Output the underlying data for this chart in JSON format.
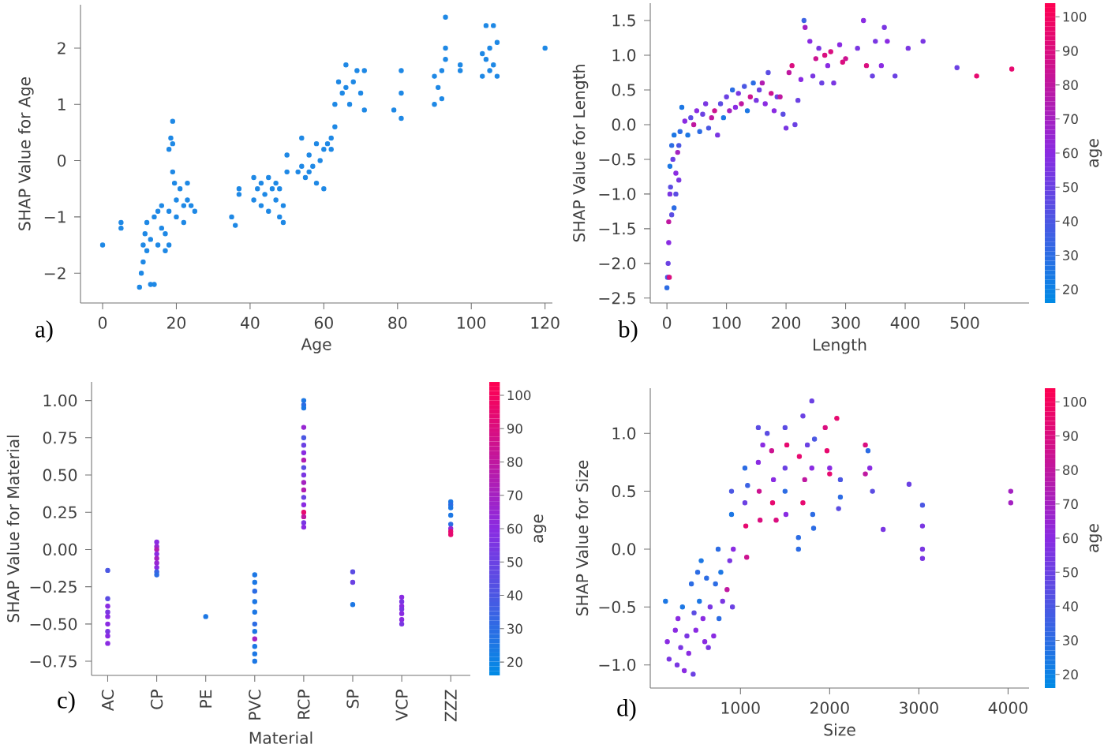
{
  "chart_data": [
    {
      "type": "scatter",
      "xlabel": "Age",
      "ylabel": "SHAP Value for Age",
      "annotations": [
        "a)"
      ],
      "color": "#1e88e5",
      "marker": "circle",
      "xlim": [
        -6,
        122
      ],
      "ylim": [
        -2.53,
        2.77
      ],
      "xticks": [
        0,
        20,
        40,
        60,
        80,
        100,
        120
      ],
      "yticks": [
        {
          "value": -2,
          "label": "−2"
        },
        {
          "value": -1,
          "label": "−1"
        },
        0,
        1,
        2
      ],
      "x": [
        0,
        5,
        5,
        10,
        10.5,
        11,
        11,
        11.5,
        12,
        12,
        13,
        13,
        14,
        14,
        15,
        15,
        16,
        16,
        17,
        17,
        18,
        18,
        18,
        18.5,
        19,
        19,
        19,
        19.5,
        20,
        20,
        21,
        22,
        22,
        23,
        23,
        24,
        25,
        35,
        36,
        37,
        37,
        41,
        41,
        42,
        43,
        43,
        44,
        45,
        45,
        46,
        47,
        47,
        48,
        48,
        49,
        49,
        50,
        50,
        53,
        54,
        54,
        55,
        56,
        56,
        57,
        58,
        58,
        59,
        60,
        60,
        61,
        62,
        62,
        63,
        63,
        64,
        65,
        66,
        66,
        67,
        68,
        69,
        70,
        71,
        71,
        79,
        81,
        81,
        81,
        90,
        90,
        91,
        92,
        92,
        93,
        93,
        93,
        97,
        97,
        103,
        103,
        104,
        104,
        105,
        105,
        106,
        106,
        107,
        107,
        120
      ],
      "values": [
        -1.5,
        -1.1,
        -1.2,
        -2.25,
        -2.0,
        -1.8,
        -1.5,
        -1.3,
        -1.1,
        -1.6,
        -1.4,
        -2.2,
        -2.2,
        -1.0,
        -0.9,
        -1.5,
        -1.2,
        -0.8,
        -1.6,
        -1.3,
        -0.9,
        -1.5,
        0.2,
        0.4,
        0.7,
        0.3,
        -0.2,
        -0.4,
        -0.7,
        -1.0,
        -0.5,
        -0.8,
        -1.1,
        -0.4,
        -0.7,
        -0.8,
        -0.9,
        -1.0,
        -1.15,
        -0.5,
        -0.6,
        -0.3,
        -0.7,
        -0.5,
        -0.4,
        -0.8,
        -0.6,
        -0.3,
        -0.9,
        -0.5,
        -0.4,
        -0.7,
        -0.5,
        -1.0,
        -0.8,
        -1.1,
        -0.2,
        0.1,
        -0.2,
        0.4,
        -0.1,
        -0.3,
        0.1,
        -0.2,
        -0.1,
        -0.4,
        0.3,
        0.0,
        0.2,
        -0.5,
        0.3,
        0.4,
        0.2,
        0.6,
        1.0,
        1.4,
        1.2,
        1.7,
        1.3,
        1.0,
        1.4,
        1.6,
        1.2,
        1.6,
        0.9,
        0.9,
        1.6,
        1.2,
        0.75,
        1.5,
        1.0,
        1.3,
        1.6,
        1.1,
        2.55,
        2.0,
        1.8,
        1.7,
        1.6,
        1.9,
        1.5,
        2.4,
        1.8,
        2.0,
        1.6,
        2.4,
        1.7,
        2.1,
        1.5,
        2.0
      ]
    },
    {
      "type": "scatter",
      "xlabel": "Length",
      "ylabel": "SHAP Value for Length",
      "annotations": [
        "b)"
      ],
      "clabel": "age",
      "marker": "circle",
      "xlim": [
        -28,
        608
      ],
      "ylim": [
        -2.57,
        1.75
      ],
      "clim": [
        16,
        104
      ],
      "cticks": [
        {
          "value": 20,
          "label": "20"
        },
        {
          "value": 30,
          "label": "30"
        },
        {
          "value": 40,
          "label": "40"
        },
        {
          "value": 50,
          "label": "50"
        },
        {
          "value": 60,
          "label": "60"
        },
        {
          "value": 70,
          "label": "70"
        },
        {
          "value": 80,
          "label": "80"
        },
        {
          "value": 90,
          "label": "90"
        },
        {
          "value": 100,
          "label": "100"
        }
      ],
      "xticks": [
        0,
        100,
        200,
        300,
        400,
        500
      ],
      "yticks": [
        {
          "value": -2.5,
          "label": "−2.5"
        },
        {
          "value": -2,
          "label": "−2.0"
        },
        {
          "value": -1.5,
          "label": "−1.5"
        },
        {
          "value": -1,
          "label": "−1.0"
        },
        {
          "value": -0.5,
          "label": "−0.5"
        },
        {
          "value": 0,
          "label": "0.0"
        },
        0.5,
        {
          "value": 1,
          "label": "1.0"
        },
        1.5
      ],
      "x": [
        0,
        1,
        2,
        3,
        3,
        4,
        5,
        5,
        6,
        8,
        8,
        10,
        12,
        12,
        15,
        15,
        18,
        20,
        20,
        22,
        25,
        30,
        35,
        40,
        45,
        50,
        55,
        60,
        65,
        70,
        75,
        80,
        85,
        90,
        95,
        100,
        105,
        110,
        115,
        120,
        125,
        130,
        135,
        140,
        145,
        150,
        155,
        160,
        165,
        170,
        175,
        180,
        185,
        190,
        195,
        200,
        205,
        210,
        215,
        220,
        225,
        230,
        232,
        240,
        245,
        250,
        255,
        260,
        265,
        270,
        275,
        280,
        290,
        295,
        300,
        320,
        330,
        335,
        345,
        350,
        360,
        365,
        370,
        383,
        405,
        430,
        487,
        520,
        579
      ],
      "values": [
        -2.35,
        -2.2,
        -2.0,
        -1.7,
        -1.4,
        -2.2,
        -1.0,
        -0.6,
        -0.9,
        -0.3,
        -1.3,
        -0.5,
        -0.15,
        -1.2,
        -0.7,
        -1.0,
        -0.4,
        -0.8,
        -0.3,
        -0.1,
        0.25,
        0.05,
        -0.15,
        0.1,
        0.0,
        0.2,
        -0.1,
        0.15,
        0.3,
        -0.05,
        0.1,
        0.2,
        -0.15,
        0.3,
        0.1,
        0.4,
        0.2,
        0.5,
        0.25,
        0.45,
        0.3,
        0.55,
        0.2,
        0.4,
        0.6,
        0.35,
        0.5,
        0.6,
        0.3,
        0.75,
        0.45,
        0.2,
        0.4,
        0.4,
        0.15,
        -0.05,
        0.75,
        0.85,
        0.0,
        0.35,
        0.65,
        1.5,
        1.4,
        1.2,
        0.7,
        0.95,
        1.1,
        0.6,
        1.0,
        0.85,
        1.05,
        0.6,
        1.15,
        0.9,
        0.95,
        1.1,
        1.5,
        0.85,
        0.7,
        1.2,
        0.85,
        1.4,
        1.2,
        0.7,
        1.1,
        1.2,
        0.82,
        0.7,
        0.8
      ],
      "cvalues": [
        30,
        40,
        50,
        60,
        80,
        90,
        55,
        25,
        45,
        30,
        45,
        50,
        25,
        30,
        60,
        45,
        70,
        55,
        40,
        30,
        25,
        60,
        25,
        45,
        80,
        60,
        30,
        50,
        55,
        40,
        80,
        85,
        55,
        45,
        25,
        50,
        70,
        30,
        60,
        55,
        80,
        40,
        25,
        85,
        30,
        55,
        50,
        75,
        60,
        45,
        85,
        60,
        50,
        80,
        45,
        55,
        80,
        90,
        50,
        50,
        60,
        35,
        70,
        60,
        55,
        85,
        55,
        50,
        90,
        60,
        90,
        55,
        60,
        90,
        85,
        55,
        60,
        90,
        50,
        55,
        60,
        55,
        60,
        50,
        55,
        55,
        50,
        95,
        95
      ]
    },
    {
      "type": "scatter",
      "xlabel": "Material",
      "ylabel": "SHAP Value for Material",
      "annotations": [
        "c)"
      ],
      "clabel": "age",
      "marker": "circle",
      "categories": [
        "AC",
        "CP",
        "PE",
        "PVC",
        "RCP",
        "SP",
        "VCP",
        "ZZZ"
      ],
      "ylim": [
        -0.845,
        1.125
      ],
      "clim": [
        16,
        104
      ],
      "cticks": [
        {
          "value": 20,
          "label": "20"
        },
        {
          "value": 30,
          "label": "30"
        },
        {
          "value": 40,
          "label": "40"
        },
        {
          "value": 50,
          "label": "50"
        },
        {
          "value": 60,
          "label": "60"
        },
        {
          "value": 70,
          "label": "70"
        },
        {
          "value": 80,
          "label": "80"
        },
        {
          "value": 90,
          "label": "90"
        },
        {
          "value": 100,
          "label": "100"
        }
      ],
      "yticks": [
        {
          "value": -0.75,
          "label": "−0.75"
        },
        {
          "value": -0.5,
          "label": "−0.50"
        },
        {
          "value": -0.25,
          "label": "−0.25"
        },
        {
          "value": 0,
          "label": "0.00"
        },
        0.25,
        {
          "value": 0.5,
          "label": "0.50"
        },
        0.75,
        {
          "value": 1,
          "label": "1.00"
        }
      ],
      "series": [
        {
          "x": [
            "AC",
            "AC",
            "AC",
            "AC",
            "AC",
            "AC",
            "AC",
            "AC",
            "AC",
            "CP",
            "CP",
            "CP",
            "CP",
            "CP",
            "CP",
            "CP",
            "CP",
            "CP",
            "PE",
            "PVC",
            "PVC",
            "PVC",
            "PVC",
            "PVC",
            "PVC",
            "PVC",
            "PVC",
            "PVC",
            "PVC",
            "PVC",
            "RCP",
            "RCP",
            "RCP",
            "RCP",
            "RCP",
            "RCP",
            "RCP",
            "RCP",
            "RCP",
            "RCP",
            "RCP",
            "RCP",
            "RCP",
            "RCP",
            "RCP",
            "RCP",
            "RCP",
            "RCP",
            "SP",
            "SP",
            "SP",
            "VCP",
            "VCP",
            "VCP",
            "VCP",
            "VCP",
            "VCP",
            "VCP",
            "ZZZ",
            "ZZZ",
            "ZZZ",
            "ZZZ",
            "ZZZ",
            "ZZZ",
            "ZZZ",
            "ZZZ"
          ],
          "values": [
            -0.14,
            -0.33,
            -0.38,
            -0.42,
            -0.45,
            -0.5,
            -0.55,
            -0.58,
            -0.63,
            0.05,
            0.02,
            0.0,
            -0.03,
            -0.06,
            -0.09,
            -0.12,
            -0.15,
            -0.17,
            -0.45,
            -0.17,
            -0.22,
            -0.28,
            -0.35,
            -0.42,
            -0.5,
            -0.55,
            -0.6,
            -0.65,
            -0.7,
            -0.75,
            1.0,
            0.97,
            0.95,
            0.82,
            0.75,
            0.7,
            0.65,
            0.6,
            0.55,
            0.5,
            0.45,
            0.4,
            0.35,
            0.3,
            0.25,
            0.22,
            0.18,
            0.15,
            -0.15,
            -0.22,
            -0.37,
            -0.32,
            -0.35,
            -0.38,
            -0.4,
            -0.43,
            -0.47,
            -0.5,
            0.32,
            0.3,
            0.28,
            0.23,
            0.17,
            0.14,
            0.12,
            0.1
          ],
          "cvalues": [
            40,
            45,
            60,
            55,
            60,
            60,
            55,
            60,
            60,
            60,
            65,
            75,
            60,
            70,
            65,
            60,
            35,
            30,
            25,
            25,
            25,
            30,
            25,
            25,
            30,
            25,
            70,
            25,
            25,
            25,
            25,
            30,
            25,
            65,
            40,
            50,
            60,
            75,
            45,
            55,
            70,
            75,
            50,
            60,
            95,
            80,
            55,
            60,
            45,
            50,
            25,
            60,
            55,
            60,
            55,
            60,
            60,
            55,
            25,
            30,
            25,
            25,
            30,
            65,
            95,
            95
          ]
        }
      ]
    },
    {
      "type": "scatter",
      "xlabel": "Size",
      "ylabel": "SHAP Value for Size",
      "annotations": [
        "d)"
      ],
      "clabel": "age",
      "marker": "circle",
      "xlim": [
        -11,
        4235
      ],
      "ylim": [
        -1.2,
        1.39
      ],
      "clim": [
        16,
        104
      ],
      "cticks": [
        {
          "value": 20,
          "label": "20"
        },
        {
          "value": 30,
          "label": "30"
        },
        {
          "value": 40,
          "label": "40"
        },
        {
          "value": 50,
          "label": "50"
        },
        {
          "value": 60,
          "label": "60"
        },
        {
          "value": 70,
          "label": "70"
        },
        {
          "value": 80,
          "label": "80"
        },
        {
          "value": 90,
          "label": "90"
        },
        {
          "value": 100,
          "label": "100"
        }
      ],
      "xticks": [
        1000,
        2000,
        3000,
        4000
      ],
      "yticks": [
        {
          "value": -1,
          "label": "−1.0"
        },
        {
          "value": -0.5,
          "label": "−0.5"
        },
        {
          "value": 0,
          "label": "0.0"
        },
        0.5,
        {
          "value": 1,
          "label": "1.0"
        }
      ],
      "x": [
        160,
        180,
        200,
        270,
        290,
        300,
        330,
        350,
        370,
        400,
        420,
        450,
        470,
        480,
        500,
        520,
        540,
        560,
        580,
        600,
        620,
        640,
        660,
        700,
        720,
        750,
        760,
        780,
        800,
        850,
        880,
        900,
        900,
        910,
        920,
        1050,
        1050,
        1060,
        1070,
        1080,
        1200,
        1200,
        1210,
        1220,
        1250,
        1300,
        1350,
        1360,
        1370,
        1400,
        1500,
        1500,
        1500,
        1510,
        1520,
        1650,
        1650,
        1660,
        1700,
        1700,
        1720,
        1750,
        1800,
        1800,
        1810,
        1820,
        1830,
        1950,
        1970,
        2000,
        2000,
        2080,
        2100,
        2120,
        2120,
        2400,
        2400,
        2430,
        2450,
        2480,
        2600,
        2890,
        3040,
        3040,
        3040,
        3040,
        4030,
        4030
      ],
      "values": [
        -0.45,
        -0.8,
        -0.95,
        -0.7,
        -1.0,
        -0.6,
        -0.85,
        -0.5,
        -1.05,
        -0.75,
        -0.9,
        -0.3,
        -1.08,
        -0.55,
        -0.7,
        -0.2,
        -0.45,
        -0.1,
        -0.6,
        -0.8,
        -0.25,
        -0.85,
        -0.5,
        -0.75,
        -0.3,
        0.0,
        -0.6,
        -0.2,
        -0.45,
        -0.35,
        -0.1,
        0.5,
        0.3,
        -0.5,
        0.0,
        0.7,
        0.4,
        0.2,
        -0.07,
        0.55,
        1.05,
        0.75,
        0.5,
        0.25,
        0.9,
        1.0,
        0.85,
        0.4,
        0.6,
        0.25,
        1.05,
        0.7,
        0.5,
        0.3,
        0.9,
        0.0,
        0.1,
        0.8,
        1.15,
        0.4,
        0.6,
        0.9,
        1.28,
        0.7,
        0.3,
        0.18,
        0.95,
        1.05,
        0.85,
        0.7,
        0.65,
        1.13,
        0.35,
        0.45,
        0.6,
        0.9,
        0.65,
        0.85,
        0.7,
        0.5,
        0.17,
        0.56,
        0.38,
        0.2,
        0.0,
        -0.08,
        0.5,
        0.4
      ],
      "cvalues": [
        25,
        60,
        55,
        60,
        55,
        60,
        55,
        25,
        60,
        55,
        60,
        30,
        50,
        45,
        60,
        30,
        25,
        25,
        60,
        60,
        30,
        55,
        55,
        60,
        30,
        30,
        30,
        25,
        55,
        80,
        55,
        40,
        25,
        50,
        60,
        30,
        50,
        95,
        85,
        35,
        45,
        60,
        85,
        90,
        60,
        45,
        85,
        95,
        60,
        90,
        45,
        50,
        30,
        60,
        95,
        30,
        30,
        95,
        50,
        95,
        80,
        50,
        50,
        60,
        30,
        30,
        40,
        90,
        95,
        60,
        95,
        95,
        45,
        30,
        40,
        90,
        80,
        30,
        60,
        45,
        55,
        50,
        40,
        55,
        55,
        55,
        70,
        70
      ]
    }
  ]
}
